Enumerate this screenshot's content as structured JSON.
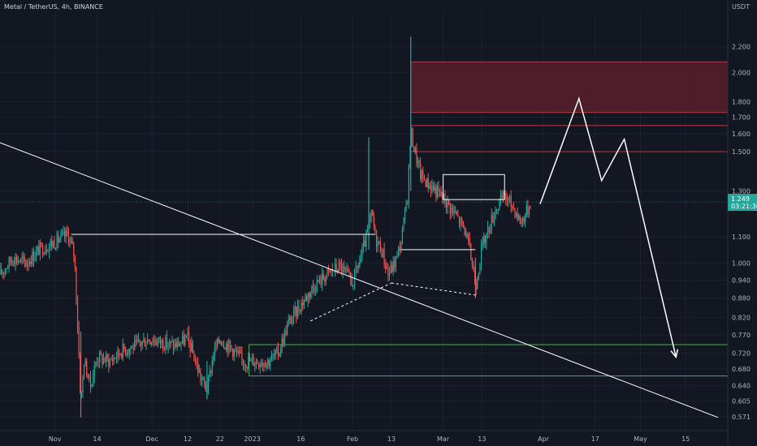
{
  "header": {
    "title": "Metal / TetherUS, 4h, BINANCE",
    "currency": "USDT"
  },
  "price_badge": {
    "price": "1.249",
    "countdown": "03:21:30",
    "color": "#26a69a"
  },
  "colors": {
    "background": "#131722",
    "bull": "#26a69a",
    "bear": "#ef5350",
    "drawing": "#ffffff",
    "demand_zone": "#4caf50",
    "supply_zone_fill": "#5a1f2c",
    "supply_line": "#b23a48"
  },
  "chart_data": {
    "type": "candlestick",
    "symbol": "Metal / TetherUS",
    "timeframe": "4h",
    "exchange": "BINANCE",
    "y_scale": "log",
    "ylim": [
      0.545,
      2.5
    ],
    "y_ticks": [
      "2.200",
      "2.000",
      "1.800",
      "1.700",
      "1.600",
      "1.500",
      "1.300",
      "1.100",
      "1.000",
      "0.940",
      "0.880",
      "0.820",
      "0.770",
      "0.720",
      "0.680",
      "0.640",
      "0.605",
      "0.571"
    ],
    "x_ticks": [
      "Nov",
      "14",
      "Dec",
      "12",
      "22",
      "2023",
      "16",
      "Feb",
      "13",
      "Mar",
      "13",
      "Apr",
      "17",
      "May",
      "15"
    ],
    "x_tick_dates": [
      "2022-11-01",
      "2022-11-14",
      "2022-12-01",
      "2022-12-12",
      "2022-12-22",
      "2023-01-01",
      "2023-01-16",
      "2023-02-01",
      "2023-02-13",
      "2023-03-01",
      "2023-03-13",
      "2023-04-01",
      "2023-04-17",
      "2023-05-01",
      "2023-05-15"
    ],
    "xlim": [
      "2022-10-15",
      "2023-05-28"
    ],
    "price_path": [
      [
        "2022-10-15",
        0.96
      ],
      [
        "2022-10-19",
        1.02
      ],
      [
        "2022-10-23",
        1.0
      ],
      [
        "2022-10-27",
        1.05
      ],
      [
        "2022-11-01",
        1.08
      ],
      [
        "2022-11-05",
        1.11
      ],
      [
        "2022-11-07",
        1.03
      ],
      [
        "2022-11-08",
        0.8
      ],
      [
        "2022-11-09",
        0.6
      ],
      [
        "2022-11-10",
        0.7
      ],
      [
        "2022-11-12",
        0.64
      ],
      [
        "2022-11-14",
        0.71
      ],
      [
        "2022-11-18",
        0.7
      ],
      [
        "2022-11-22",
        0.73
      ],
      [
        "2022-11-26",
        0.74
      ],
      [
        "2022-11-30",
        0.76
      ],
      [
        "2022-12-04",
        0.75
      ],
      [
        "2022-12-08",
        0.74
      ],
      [
        "2022-12-12",
        0.76
      ],
      [
        "2022-12-14",
        0.71
      ],
      [
        "2022-12-16",
        0.66
      ],
      [
        "2022-12-18",
        0.63
      ],
      [
        "2022-12-20",
        0.72
      ],
      [
        "2022-12-22",
        0.76
      ],
      [
        "2022-12-26",
        0.73
      ],
      [
        "2022-12-29",
        0.7
      ],
      [
        "2023-01-02",
        0.7
      ],
      [
        "2023-01-06",
        0.7
      ],
      [
        "2023-01-09",
        0.72
      ],
      [
        "2023-01-12",
        0.8
      ],
      [
        "2023-01-16",
        0.86
      ],
      [
        "2023-01-20",
        0.92
      ],
      [
        "2023-01-24",
        0.96
      ],
      [
        "2023-01-28",
        0.99
      ],
      [
        "2023-02-01",
        0.93
      ],
      [
        "2023-02-04",
        1.04
      ],
      [
        "2023-02-06",
        1.14
      ],
      [
        "2023-02-07",
        1.2
      ],
      [
        "2023-02-08",
        1.1
      ],
      [
        "2023-02-10",
        1.05
      ],
      [
        "2023-02-12",
        0.96
      ],
      [
        "2023-02-14",
        1.0
      ],
      [
        "2023-02-16",
        1.08
      ],
      [
        "2023-02-18",
        1.28
      ],
      [
        "2023-02-19",
        1.62
      ],
      [
        "2023-02-20",
        1.52
      ],
      [
        "2023-02-22",
        1.38
      ],
      [
        "2023-02-24",
        1.34
      ],
      [
        "2023-02-27",
        1.3
      ],
      [
        "2023-03-02",
        1.25
      ],
      [
        "2023-03-05",
        1.19
      ],
      [
        "2023-03-08",
        1.12
      ],
      [
        "2023-03-10",
        1.0
      ],
      [
        "2023-03-11",
        0.92
      ],
      [
        "2023-03-13",
        1.06
      ],
      [
        "2023-03-15",
        1.13
      ],
      [
        "2023-03-17",
        1.21
      ],
      [
        "2023-03-20",
        1.28
      ],
      [
        "2023-03-23",
        1.22
      ],
      [
        "2023-03-25",
        1.16
      ],
      [
        "2023-03-27",
        1.21
      ],
      [
        "2023-03-28",
        1.249
      ]
    ],
    "annotations": {
      "supply_zone": {
        "from": "2023-02-19",
        "to": "2023-05-28",
        "top": 2.08,
        "bottom": 1.73
      },
      "resistance_lines": [
        {
          "from": "2023-02-19",
          "to": "2023-05-28",
          "price": 1.65
        },
        {
          "from": "2023-02-19",
          "to": "2023-05-28",
          "price": 1.5
        }
      ],
      "demand_zone": {
        "from": "2022-12-31",
        "to": "2023-05-28",
        "top": 0.743,
        "bottom": 0.663
      },
      "horizontal_level": {
        "from": "2022-11-06",
        "to": "2023-02-08",
        "price": 1.11
      },
      "range_box": {
        "from": "2023-03-01",
        "to": "2023-03-20",
        "top": 1.38,
        "bottom": 1.26
      },
      "lower_box_line": {
        "from": "2023-02-16",
        "to": "2023-03-11",
        "price": 1.05
      },
      "descending_trendline": {
        "from": [
          "2022-10-15",
          1.55
        ],
        "to": [
          "2023-05-25",
          0.57
        ]
      },
      "dashed_support": [
        {
          "from": [
            "2023-01-19",
            0.81
          ],
          "to": [
            "2023-02-13",
            0.93
          ]
        },
        {
          "from": [
            "2023-02-13",
            0.93
          ],
          "to": [
            "2023-03-11",
            0.89
          ]
        }
      ],
      "projected_path": [
        [
          "2023-03-31",
          1.24
        ],
        [
          "2023-04-12",
          1.82
        ],
        [
          "2023-04-19",
          1.35
        ],
        [
          "2023-04-26",
          1.57
        ],
        [
          "2023-05-12",
          0.71
        ]
      ]
    }
  }
}
